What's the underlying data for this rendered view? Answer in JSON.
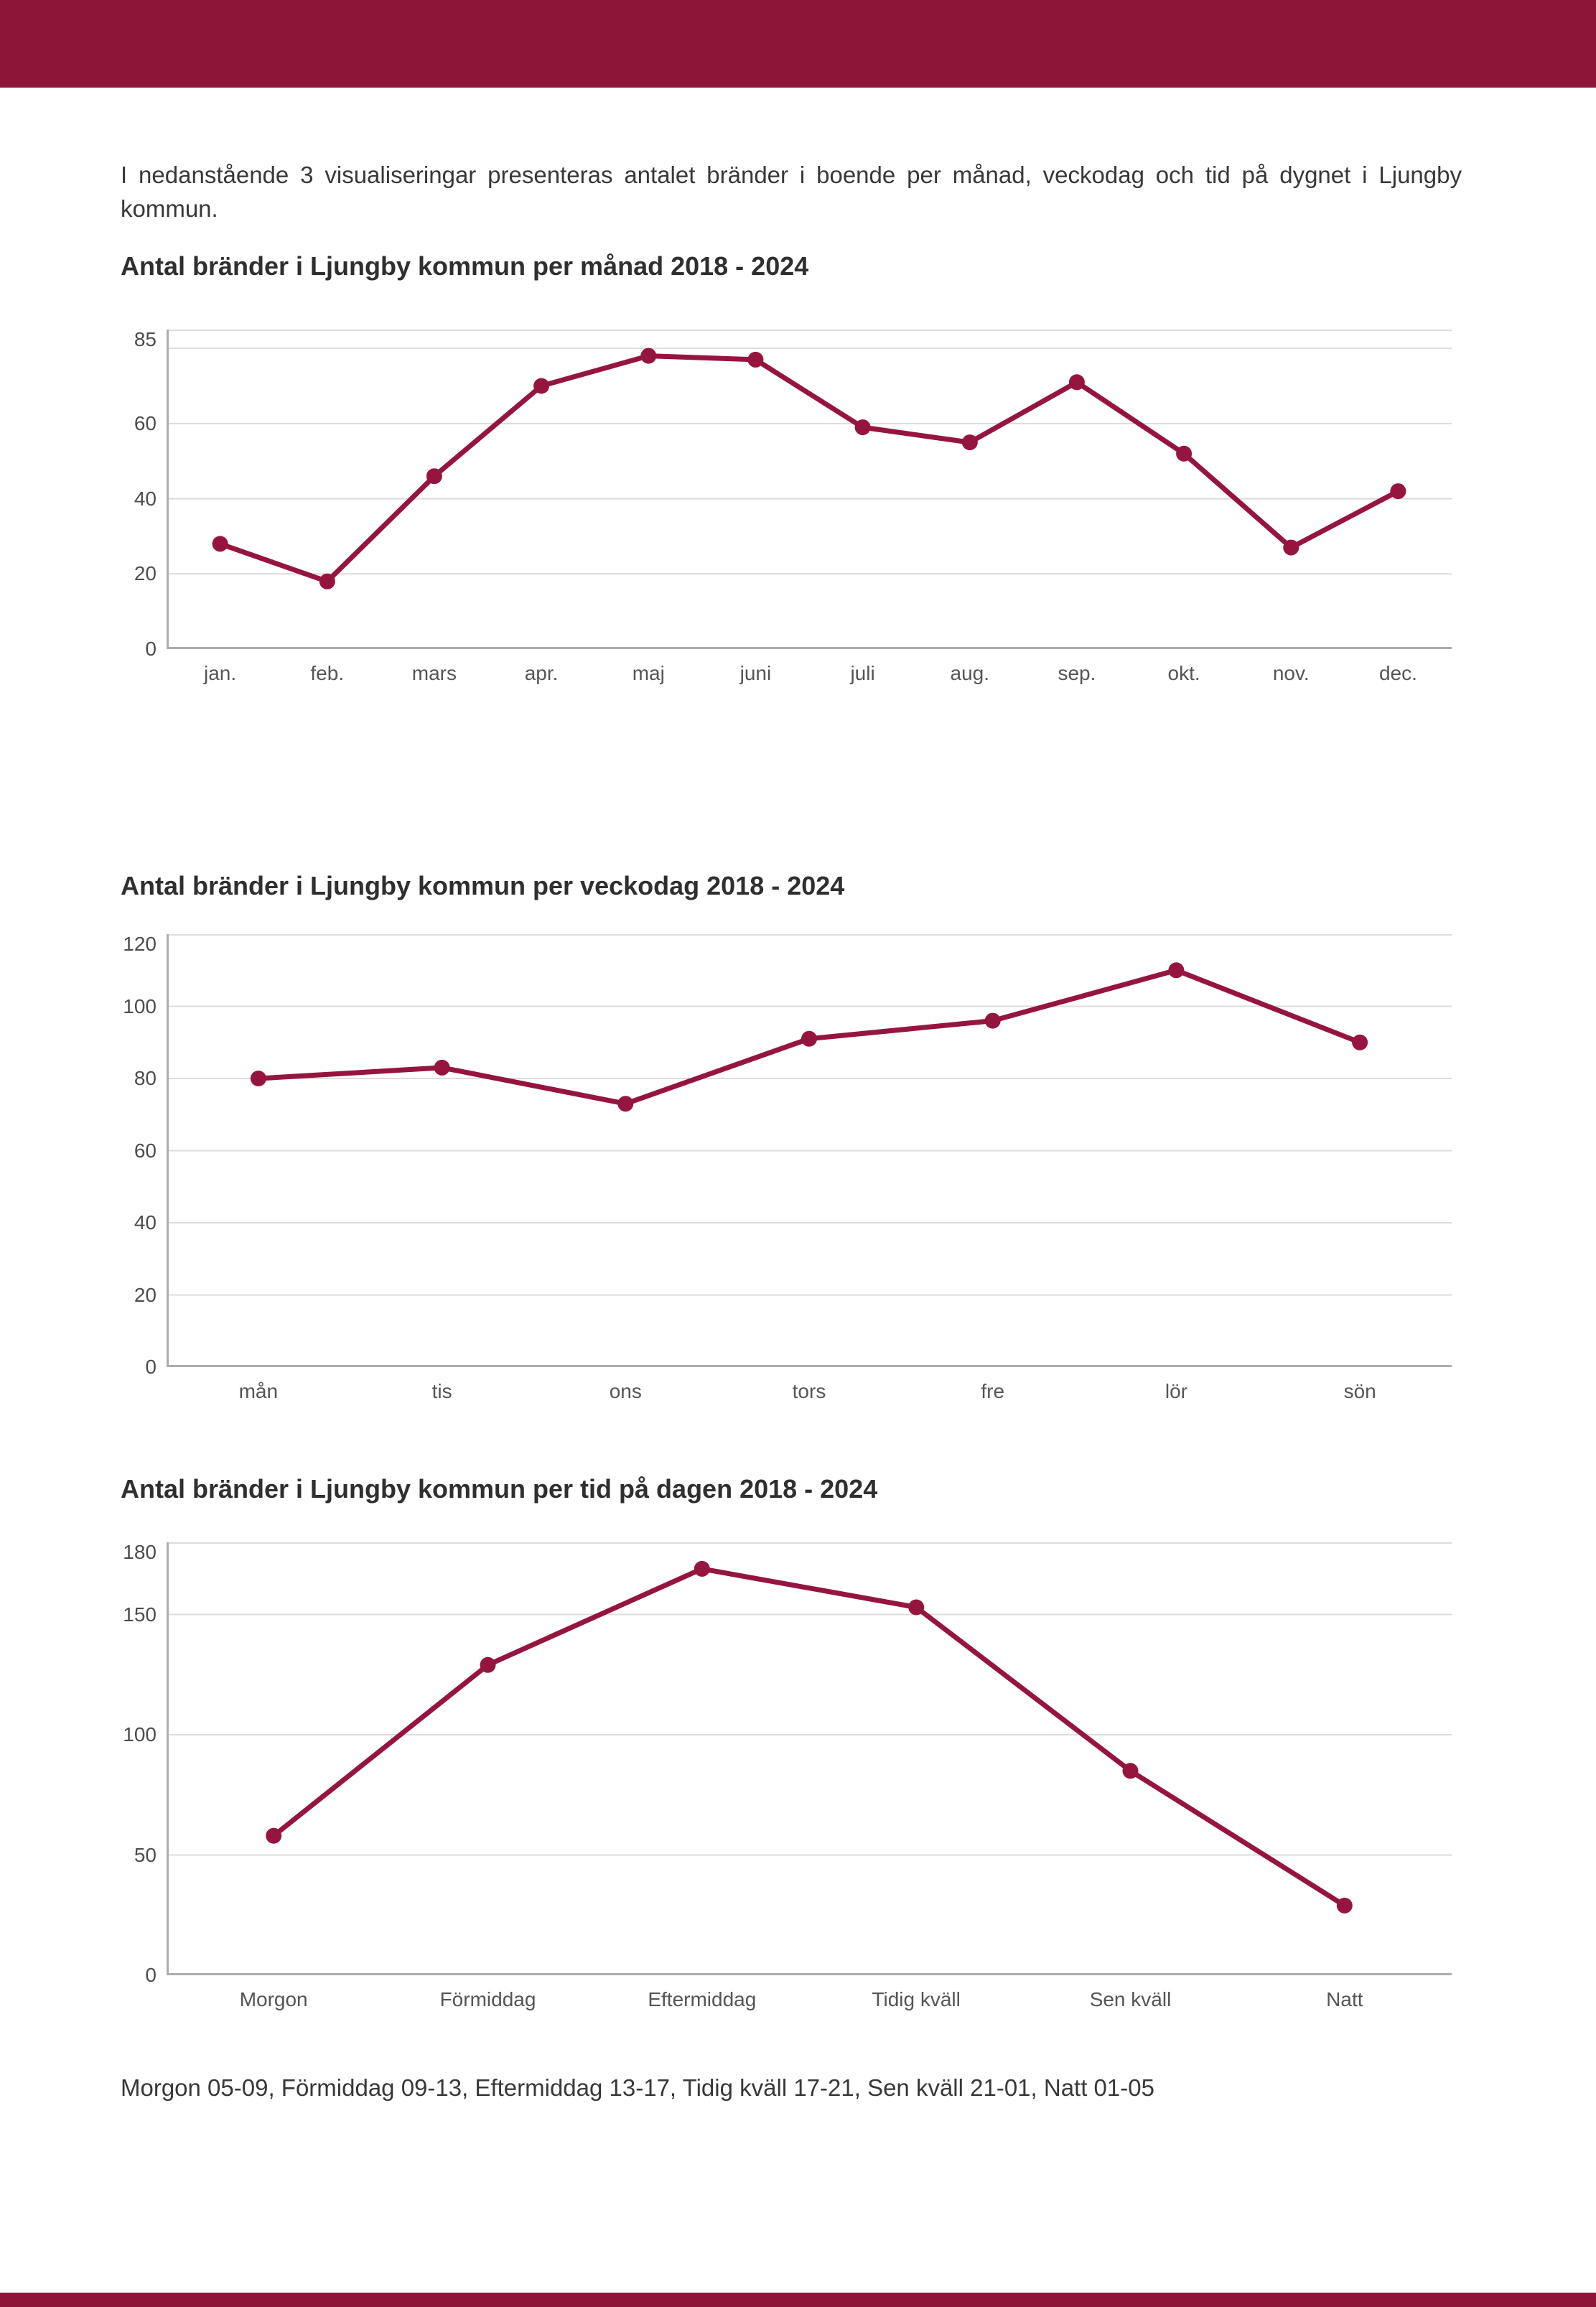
{
  "page": {
    "intro": "I nedanstående 3 visualiseringar presenteras antalet bränder i boende per månad, veckodag och tid på dygnet i Ljungby kommun.",
    "footnote": "Morgon 05-09, Förmiddag 09-13, Eftermiddag 13-17, Tidig kväll 17-21, Sen kväll 21-01, Natt 01-05"
  },
  "colors": {
    "brand_maroon": "#8C1538",
    "line": "#96153F",
    "gridline": "#DCDCDC",
    "axis": "#ADADAD",
    "tick_text": "#4D4D4D",
    "title_text": "#2F2F2F",
    "body_text": "#383838"
  },
  "chart_data": [
    {
      "type": "line",
      "title": "Antal bränder i Ljungby kommun per månad 2018 - 2024",
      "categories": [
        "jan.",
        "feb.",
        "mars",
        "apr.",
        "maj",
        "juni",
        "juli",
        "aug.",
        "sep.",
        "okt.",
        "nov.",
        "dec."
      ],
      "values": [
        28,
        18,
        46,
        70,
        78,
        77,
        59,
        55,
        71,
        52,
        27,
        42
      ],
      "xlabel": "",
      "ylabel": "",
      "ylim": [
        0,
        85
      ],
      "yticks": [
        0,
        20,
        40,
        60,
        85
      ],
      "gridline_values": [
        20,
        40,
        60,
        80
      ],
      "grid": true,
      "legend": "none",
      "marker": "dot"
    },
    {
      "type": "line",
      "title": "Antal bränder i Ljungby kommun per veckodag 2018 - 2024",
      "categories": [
        "mån",
        "tis",
        "ons",
        "tors",
        "fre",
        "lör",
        "sön"
      ],
      "values": [
        80,
        83,
        73,
        91,
        96,
        110,
        90
      ],
      "xlabel": "",
      "ylabel": "",
      "ylim": [
        0,
        120
      ],
      "yticks": [
        0,
        20,
        40,
        60,
        80,
        100,
        120
      ],
      "gridline_values": [
        20,
        40,
        60,
        80,
        100
      ],
      "grid": true,
      "legend": "none",
      "marker": "dot"
    },
    {
      "type": "line",
      "title": "Antal bränder i Ljungby kommun per tid på dagen 2018 - 2024",
      "categories": [
        "Morgon",
        "Förmiddag",
        "Eftermiddag",
        "Tidig kväll",
        "Sen kväll",
        "Natt"
      ],
      "values": [
        58,
        129,
        169,
        153,
        85,
        29
      ],
      "xlabel": "",
      "ylabel": "",
      "ylim": [
        0,
        180
      ],
      "yticks": [
        0,
        50,
        100,
        150,
        180
      ],
      "gridline_values": [
        50,
        100,
        150
      ],
      "grid": true,
      "legend": "none",
      "marker": "dot"
    }
  ]
}
